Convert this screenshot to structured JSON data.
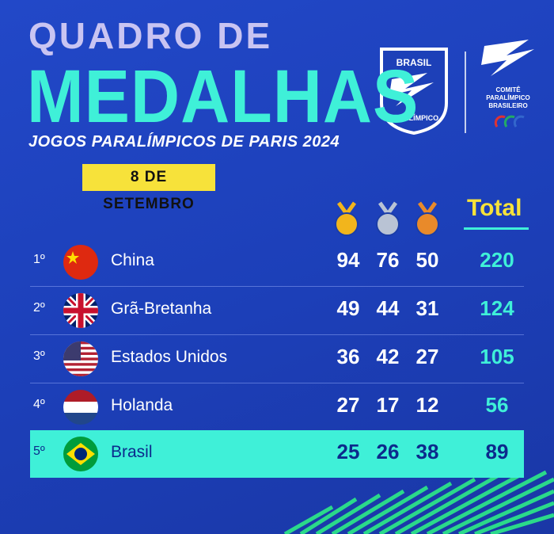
{
  "header": {
    "title_line1": "QUADRO DE",
    "title_line2": "MEDALHAS",
    "subtitle": "JOGOS PARALÍMPICOS DE PARIS 2024",
    "date": "8 DE SETEMBRO"
  },
  "logos": {
    "badge": {
      "top": "BRASIL",
      "bottom": "PARALÍMPICO"
    },
    "committee": [
      "COMITÊ",
      "PARALÍMPICO",
      "BRASILEIRO"
    ]
  },
  "table": {
    "total_header": "Total",
    "rows": [
      {
        "rank": "1º",
        "country": "China",
        "gold": 94,
        "silver": 76,
        "bronze": 50,
        "total": 220
      },
      {
        "rank": "2º",
        "country": "Grã-Bretanha",
        "gold": 49,
        "silver": 44,
        "bronze": 31,
        "total": 124
      },
      {
        "rank": "3º",
        "country": "Estados Unidos",
        "gold": 36,
        "silver": 42,
        "bronze": 27,
        "total": 105
      },
      {
        "rank": "4º",
        "country": "Holanda",
        "gold": 27,
        "silver": 17,
        "bronze": 12,
        "total": 56
      },
      {
        "rank": "5º",
        "country": "Brasil",
        "gold": 25,
        "silver": 26,
        "bronze": 38,
        "total": 89
      }
    ]
  }
}
